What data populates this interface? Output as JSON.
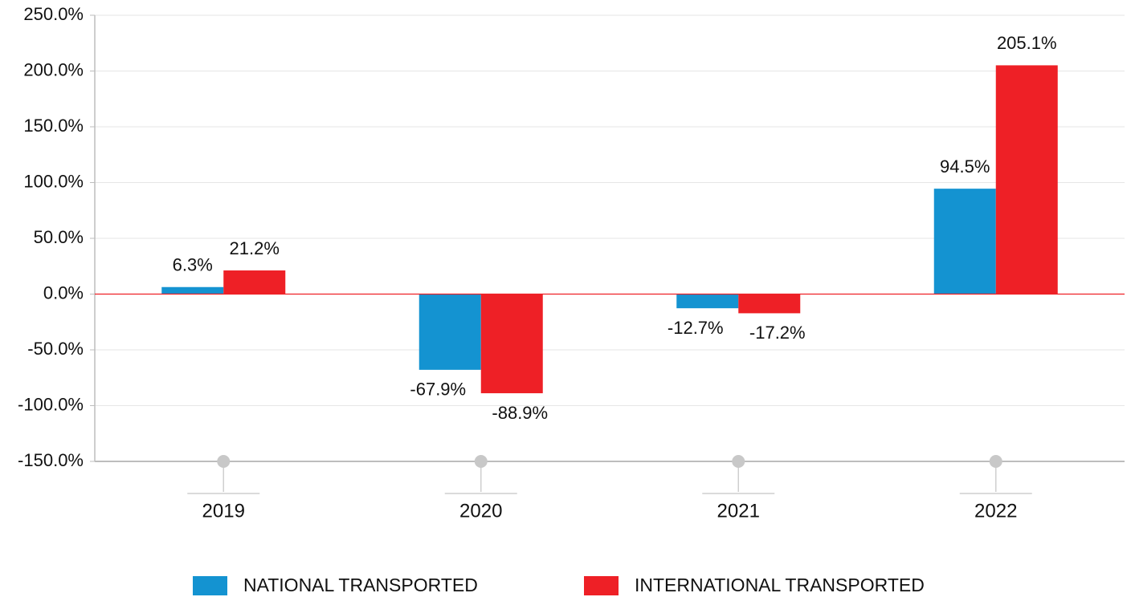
{
  "chart_data": {
    "type": "bar",
    "categories": [
      "2019",
      "2020",
      "2021",
      "2022"
    ],
    "series": [
      {
        "name": "NATIONAL TRANSPORTED",
        "color": "#1493d1",
        "values": [
          6.3,
          -67.9,
          -12.7,
          94.5
        ],
        "value_labels": [
          "6.3%",
          "-67.9%",
          "-12.7%",
          "94.5%"
        ]
      },
      {
        "name": "INTERNATIONAL TRANSPORTED",
        "color": "#ee2026",
        "values": [
          21.2,
          -88.9,
          -17.2,
          205.1
        ],
        "value_labels": [
          "21.2%",
          "-88.9%",
          "-17.2%",
          "205.1%"
        ]
      }
    ],
    "ylim": [
      -150,
      250
    ],
    "yticks": [
      {
        "value": -150,
        "label": "-150.0%"
      },
      {
        "value": -100,
        "label": "-100.0%"
      },
      {
        "value": -50,
        "label": "-50.0%"
      },
      {
        "value": 0,
        "label": "0.0%"
      },
      {
        "value": 50,
        "label": "50.0%"
      },
      {
        "value": 100,
        "label": "100.0%"
      },
      {
        "value": 150,
        "label": "150.0%"
      },
      {
        "value": 200,
        "label": "200.0%"
      },
      {
        "value": 250,
        "label": "250.0%"
      }
    ],
    "grid": true,
    "legend": "bottom"
  }
}
